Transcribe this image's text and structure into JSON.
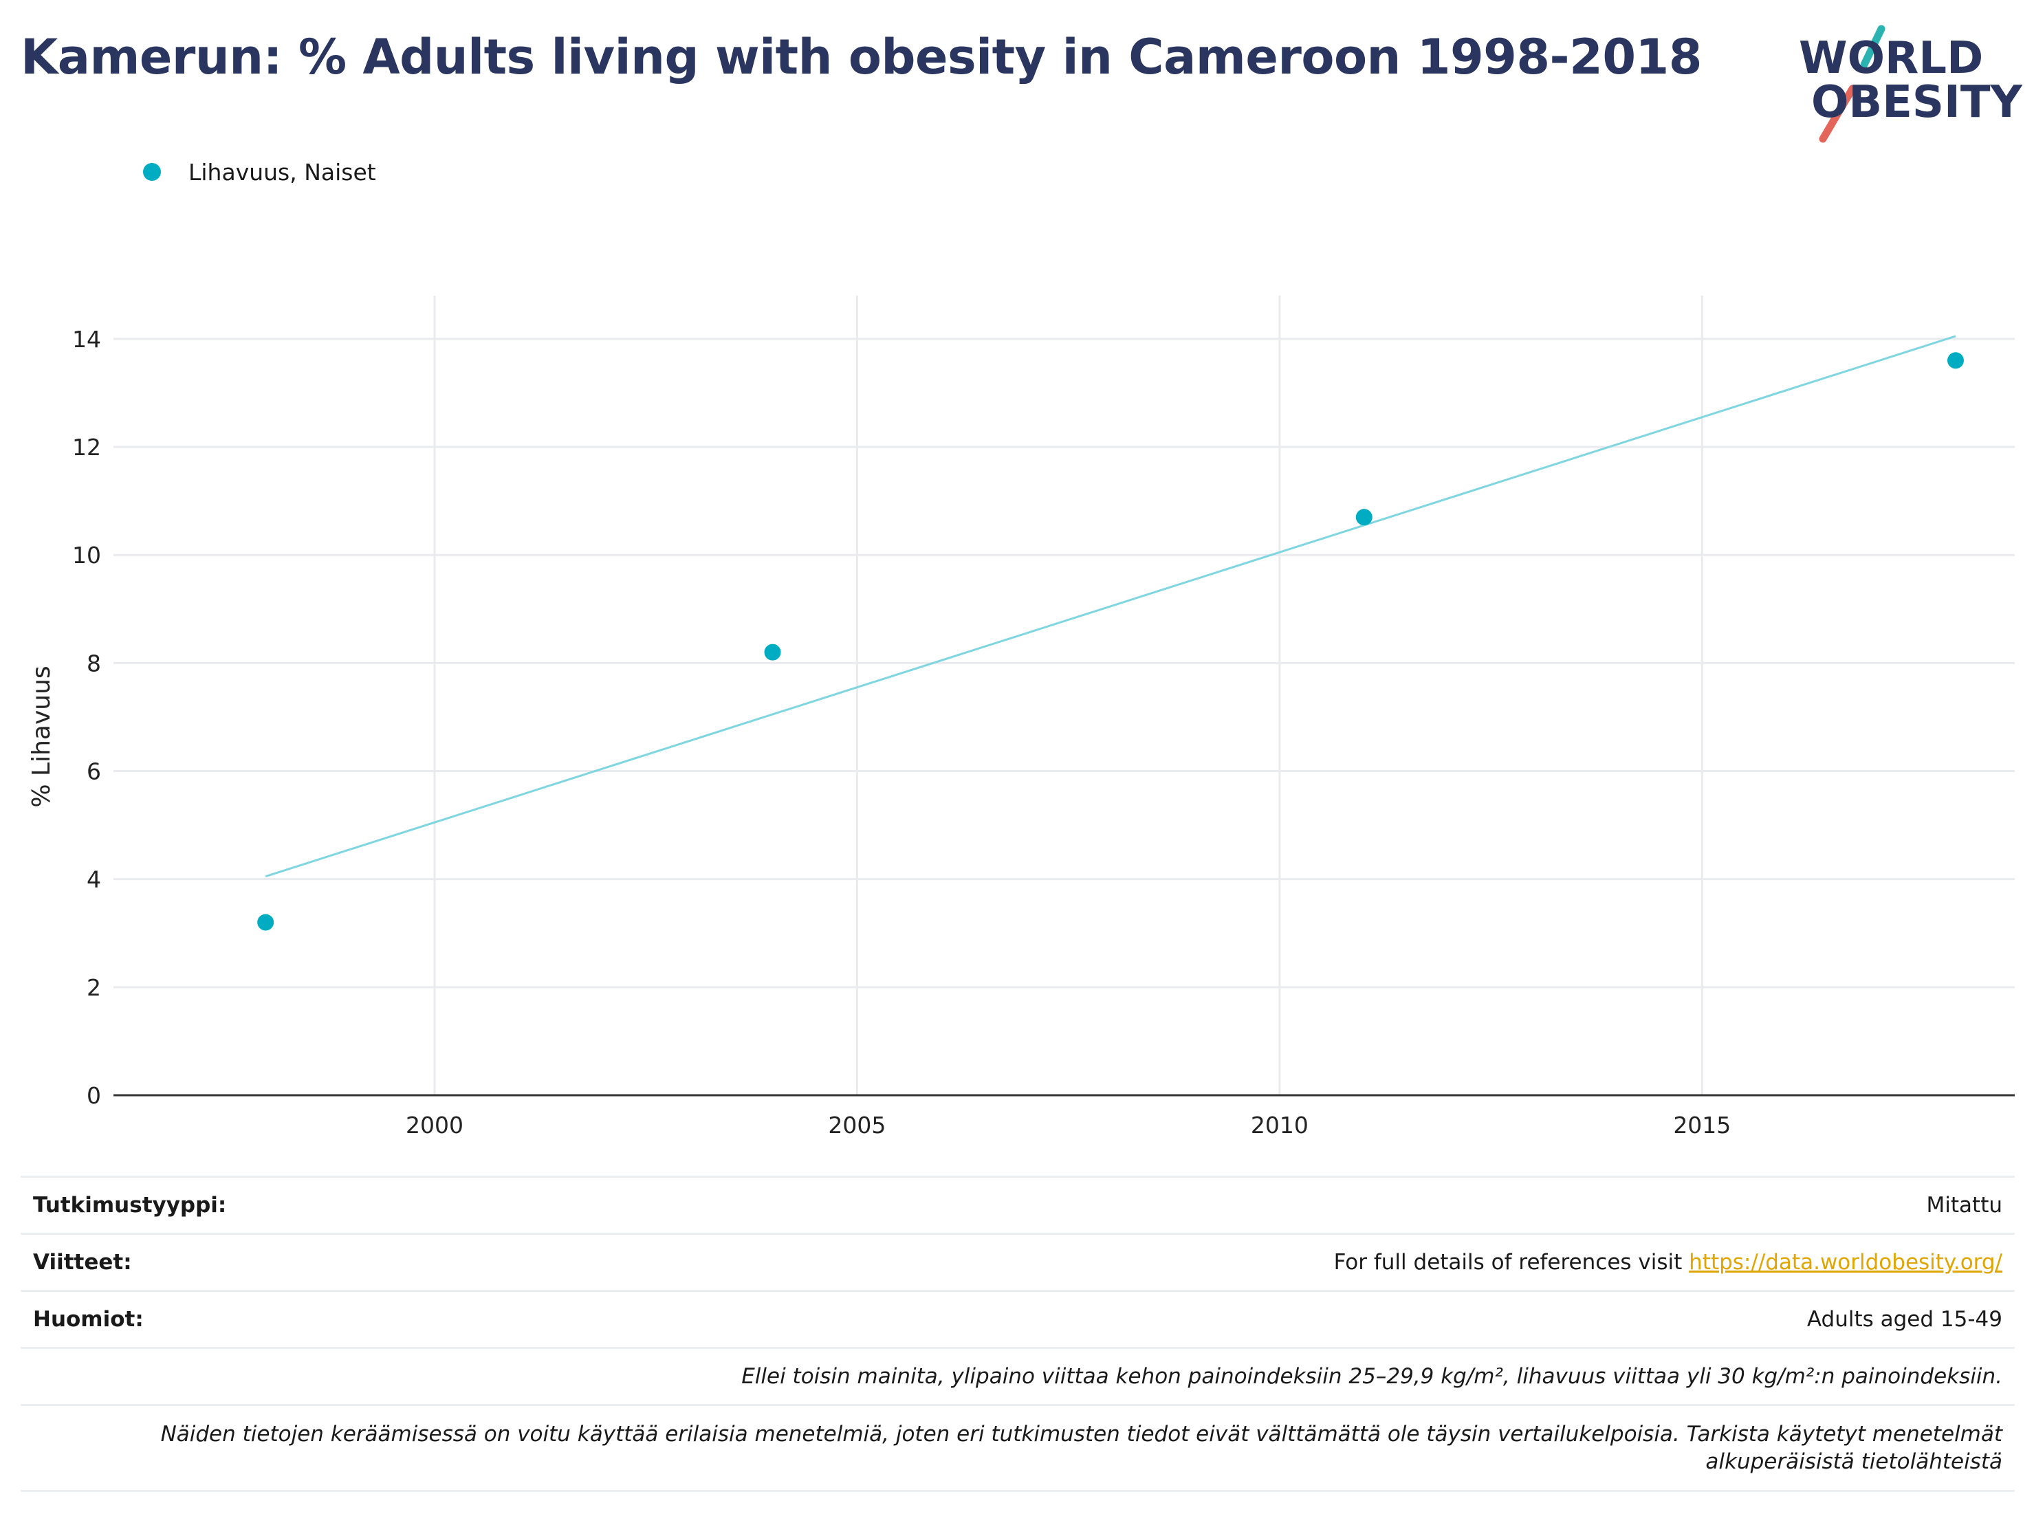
{
  "header": {
    "title": "Kamerun: % Adults living with obesity in Cameroon 1998-2018",
    "logo_line1": "WORLD",
    "logo_line2": "OBESITY"
  },
  "colors": {
    "series": "#00acc1",
    "trend": "#7fd6e0",
    "title": "#2a3560",
    "logo_teal": "#2ab3b1",
    "logo_red": "#e4665a",
    "link": "#e0a500"
  },
  "chart_data": {
    "type": "scatter",
    "title": "Kamerun: % Adults living with obesity in Cameroon 1998-2018",
    "xlabel": "",
    "ylabel": "% Lihavuus",
    "xlim": [
      1996.2,
      2018.7
    ],
    "ylim": [
      0,
      14.8
    ],
    "x_ticks": [
      2000,
      2005,
      2010,
      2015
    ],
    "y_ticks": [
      0,
      2,
      4,
      6,
      8,
      10,
      12,
      14
    ],
    "grid": true,
    "legend_position": "top-left",
    "series": [
      {
        "name": "Lihavuus, Naiset",
        "x": [
          1998,
          2004,
          2011,
          2018
        ],
        "y": [
          3.2,
          8.2,
          10.7,
          13.6
        ]
      }
    ],
    "trendline": {
      "x": [
        1998,
        2018
      ],
      "y": [
        4.05,
        14.05
      ]
    }
  },
  "meta": {
    "study_type_label": "Tutkimustyyppi:",
    "study_type_value": "Mitattu",
    "references_label": "Viitteet:",
    "references_text": "For full details of references visit ",
    "references_link": "https://data.worldobesity.org/",
    "notes_label": "Huomiot:",
    "notes_value": "Adults aged 15-49",
    "definition_note": "Ellei toisin mainita, ylipaino viittaa kehon painoindeksiin 25–29,9 kg/m², lihavuus viittaa yli 30 kg/m²:n painoindeksiin.",
    "methods_note": "Näiden tietojen keräämisessä on voitu käyttää erilaisia menetelmiä, joten eri tutkimusten tiedot eivät välttämättä ole täysin vertailukelpoisia. Tarkista käytetyt menetelmät alkuperäisistä tietolähteistä"
  }
}
